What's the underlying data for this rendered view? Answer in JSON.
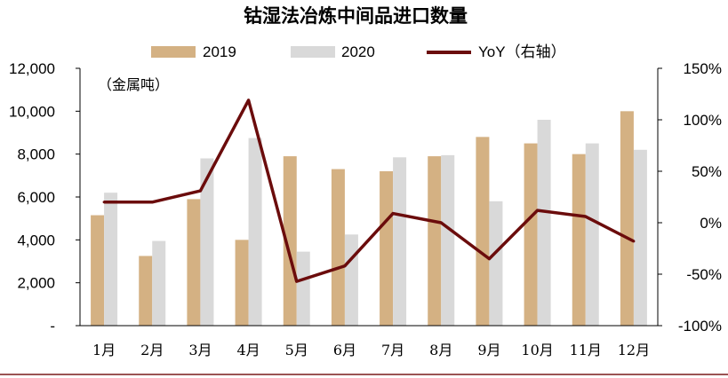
{
  "chart_data": {
    "type": "bar",
    "title": "钴湿法冶炼中间品进口数量",
    "unit_label": "（金属吨）",
    "categories": [
      "1月",
      "2月",
      "3月",
      "4月",
      "5月",
      "6月",
      "7月",
      "8月",
      "9月",
      "10月",
      "11月",
      "12月"
    ],
    "series": [
      {
        "name": "2019",
        "type": "bar",
        "axis": "left",
        "color": "#d4b183",
        "values": [
          5150,
          3250,
          5900,
          4000,
          7900,
          7300,
          7200,
          7900,
          8800,
          8500,
          8000,
          10000
        ]
      },
      {
        "name": "2020",
        "type": "bar",
        "axis": "left",
        "color": "#d9d9d9",
        "values": [
          6200,
          3950,
          7800,
          8750,
          3450,
          4250,
          7850,
          7950,
          5800,
          9600,
          8500,
          8200
        ]
      },
      {
        "name": "YoY（右轴）",
        "type": "line",
        "axis": "right",
        "color": "#6b0c0c",
        "values": [
          20,
          20,
          31,
          119,
          -57,
          -42,
          9,
          0,
          -35,
          12,
          6,
          -18
        ]
      }
    ],
    "left_axis": {
      "ylim": [
        0,
        12000
      ],
      "ticks": [
        0,
        2000,
        4000,
        6000,
        8000,
        10000,
        12000
      ],
      "tick_labels": [
        "-",
        "2,000",
        "4,000",
        "6,000",
        "8,000",
        "10,000",
        "12,000"
      ]
    },
    "right_axis": {
      "ylim": [
        -100,
        150
      ],
      "ticks": [
        -100,
        -50,
        0,
        50,
        100,
        150
      ],
      "tick_labels": [
        "-100%",
        "-50%",
        "0%",
        "50%",
        "100%",
        "150%"
      ]
    },
    "grid": false,
    "legend": "top"
  }
}
